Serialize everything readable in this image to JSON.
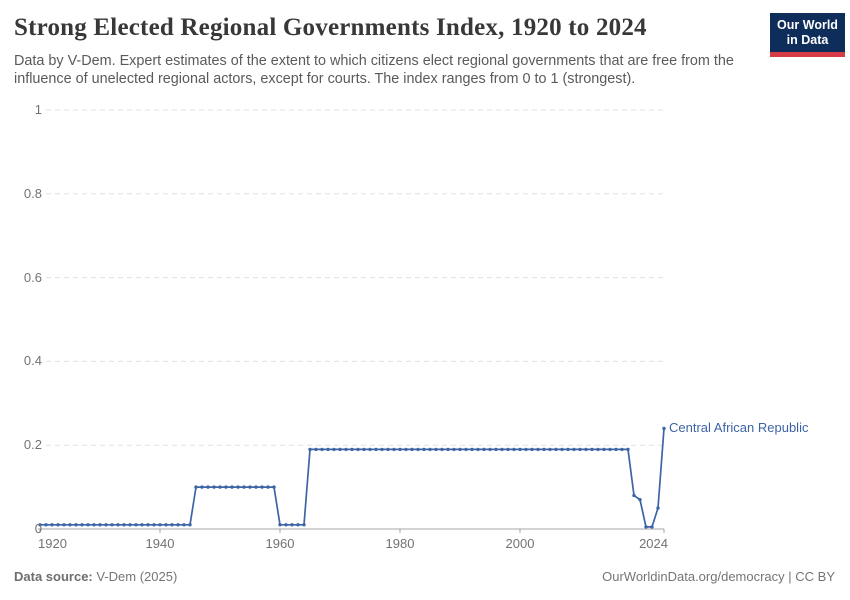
{
  "header": {
    "title": "Strong Elected Regional Governments Index, 1920 to 2024",
    "subtitle": "Data by V-Dem. Expert estimates of the extent to which citizens elect regional governments that are free from the influence of unelected regional actors, except for courts. The index ranges from 0 to 1 (strongest).",
    "logo": {
      "line1": "Our World",
      "line2": "in Data"
    }
  },
  "footer": {
    "source_label": "Data source:",
    "source_value": "V-Dem (2025)",
    "credit": "OurWorldinData.org/democracy | CC BY"
  },
  "colors": {
    "line": "#3d64a5",
    "grid": "#e0e0e0",
    "axis": "#a6a6a6",
    "tick_text": "#737373",
    "logo_bg": "#0f2d5a",
    "logo_accent": "#d73c46"
  },
  "chart_data": {
    "type": "line",
    "title": "Strong Elected Regional Governments Index, 1920 to 2024",
    "xlabel": "",
    "ylabel": "",
    "xlim": [
      1920,
      2024
    ],
    "ylim": [
      0,
      1
    ],
    "grid": "horizontal-dashed",
    "legend_position": "end-of-line-label",
    "x_ticks": [
      "1920",
      "1940",
      "1960",
      "1980",
      "2000",
      "2024"
    ],
    "x_tick_years": [
      1920,
      1940,
      1960,
      1980,
      2000,
      2024
    ],
    "y_ticks": [
      "0",
      "0.2",
      "0.4",
      "0.6",
      "0.8",
      "1"
    ],
    "y_tick_values": [
      0,
      0.2,
      0.4,
      0.6,
      0.8,
      1
    ],
    "series": [
      {
        "name": "Central African Republic",
        "start_year": 1920,
        "end_year": 2024,
        "values": [
          0.01,
          0.01,
          0.01,
          0.01,
          0.01,
          0.01,
          0.01,
          0.01,
          0.01,
          0.01,
          0.01,
          0.01,
          0.01,
          0.01,
          0.01,
          0.01,
          0.01,
          0.01,
          0.01,
          0.01,
          0.01,
          0.01,
          0.01,
          0.01,
          0.01,
          0.01,
          0.1,
          0.1,
          0.1,
          0.1,
          0.1,
          0.1,
          0.1,
          0.1,
          0.1,
          0.1,
          0.1,
          0.1,
          0.1,
          0.1,
          0.01,
          0.01,
          0.01,
          0.01,
          0.01,
          0.19,
          0.19,
          0.19,
          0.19,
          0.19,
          0.19,
          0.19,
          0.19,
          0.19,
          0.19,
          0.19,
          0.19,
          0.19,
          0.19,
          0.19,
          0.19,
          0.19,
          0.19,
          0.19,
          0.19,
          0.19,
          0.19,
          0.19,
          0.19,
          0.19,
          0.19,
          0.19,
          0.19,
          0.19,
          0.19,
          0.19,
          0.19,
          0.19,
          0.19,
          0.19,
          0.19,
          0.19,
          0.19,
          0.19,
          0.19,
          0.19,
          0.19,
          0.19,
          0.19,
          0.19,
          0.19,
          0.19,
          0.19,
          0.19,
          0.19,
          0.19,
          0.19,
          0.19,
          0.19,
          0.08,
          0.07,
          0.005,
          0.005,
          0.05,
          0.24
        ]
      }
    ]
  }
}
